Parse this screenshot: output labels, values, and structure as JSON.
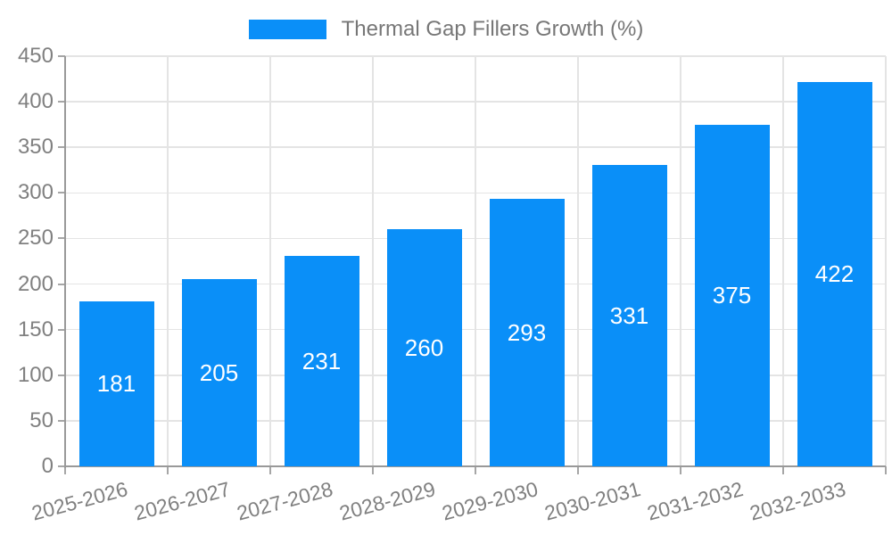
{
  "legend": {
    "position": "top",
    "items": [
      {
        "label": "Thermal Gap Fillers Growth (%)",
        "swatch_color": "#0a8ff8"
      }
    ]
  },
  "chart_data": {
    "type": "bar",
    "title": "Thermal Gap Fillers Growth (%)",
    "series_name": "Thermal Gap Fillers Growth (%)",
    "categories": [
      "2025-2026",
      "2026-2027",
      "2027-2028",
      "2028-2029",
      "2029-2030",
      "2030-2031",
      "2031-2032",
      "2032-2033"
    ],
    "values": [
      181,
      205,
      231,
      260,
      293,
      331,
      375,
      422
    ],
    "value_labels": [
      "181",
      "205",
      "231",
      "260",
      "293",
      "331",
      "375",
      "422"
    ],
    "xlabel": "",
    "ylabel": "",
    "ylim": [
      0,
      450
    ],
    "yticks": [
      0,
      50,
      100,
      150,
      200,
      250,
      300,
      350,
      400,
      450
    ],
    "grid": true,
    "legend_position": "top",
    "x_tick_rotation_deg": -15,
    "bar_color": "#0a8ff8",
    "value_label_color": "#ffffff"
  },
  "colors": {
    "background": "#ffffff",
    "bar": "#0a8ff8",
    "grid_line": "#e4e4e4",
    "axis_line": "#999999",
    "tick_mark": "#a6a6a6",
    "tick_label": "#808080",
    "legend_text": "#777777",
    "value_label": "#ffffff"
  }
}
